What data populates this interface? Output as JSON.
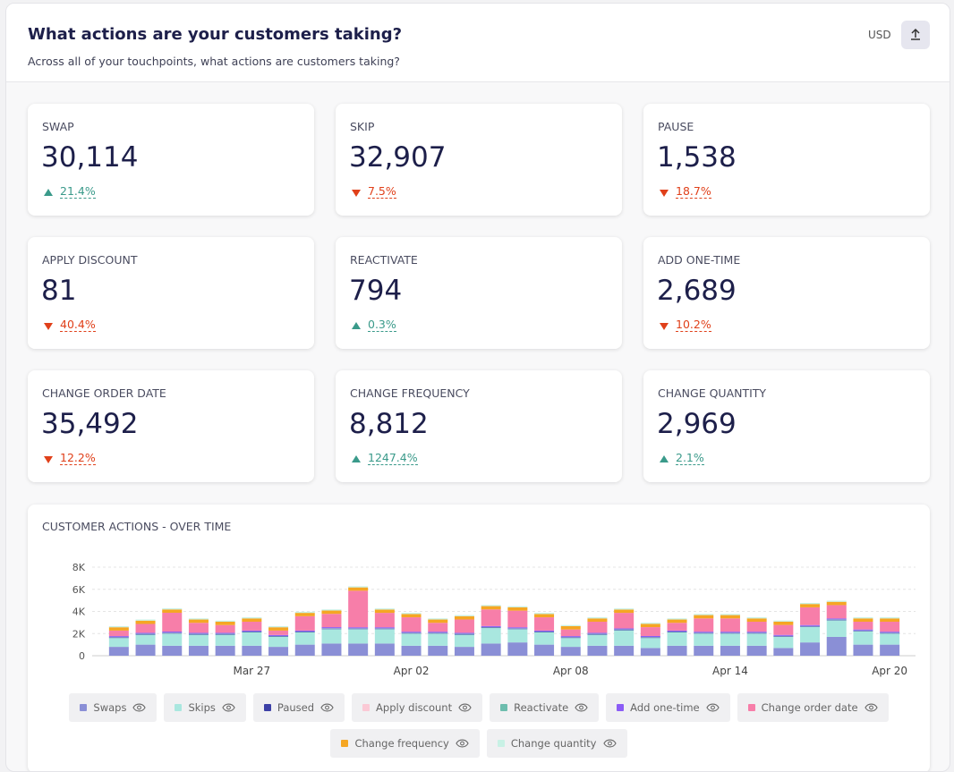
{
  "header": {
    "title": "What actions are your customers taking?",
    "subtitle": "Across all of your touchpoints, what actions are customers taking?",
    "currency": "USD"
  },
  "kpis": [
    {
      "label": "SWAP",
      "value": "30,114",
      "change": "21.4%",
      "direction": "up"
    },
    {
      "label": "SKIP",
      "value": "32,907",
      "change": "7.5%",
      "direction": "down"
    },
    {
      "label": "PAUSE",
      "value": "1,538",
      "change": "18.7%",
      "direction": "down"
    },
    {
      "label": "APPLY DISCOUNT",
      "value": "81",
      "change": "40.4%",
      "direction": "down"
    },
    {
      "label": "REACTIVATE",
      "value": "794",
      "change": "0.3%",
      "direction": "up"
    },
    {
      "label": "ADD ONE-TIME",
      "value": "2,689",
      "change": "10.2%",
      "direction": "down"
    },
    {
      "label": "CHANGE ORDER DATE",
      "value": "35,492",
      "change": "12.2%",
      "direction": "down"
    },
    {
      "label": "CHANGE FREQUENCY",
      "value": "8,812",
      "change": "1247.4%",
      "direction": "up"
    },
    {
      "label": "CHANGE QUANTITY",
      "value": "2,969",
      "change": "2.1%",
      "direction": "up"
    }
  ],
  "chart_data": {
    "type": "bar",
    "stacked": true,
    "title": "CUSTOMER ACTIONS - OVER TIME",
    "categories": [
      null,
      null,
      null,
      null,
      null,
      "Mar 27",
      null,
      null,
      null,
      null,
      null,
      "Apr 02",
      null,
      null,
      null,
      null,
      null,
      "Apr 08",
      null,
      null,
      null,
      null,
      null,
      "Apr 14",
      null,
      null,
      null,
      null,
      null,
      "Apr 20"
    ],
    "series": [
      {
        "name": "Swaps",
        "color": "#8a8fd6",
        "values": [
          800,
          1000,
          900,
          900,
          900,
          900,
          800,
          1000,
          1100,
          1100,
          1100,
          900,
          900,
          800,
          1100,
          1200,
          1000,
          800,
          900,
          900,
          700,
          900,
          900,
          900,
          900,
          700,
          1200,
          1700,
          1000,
          1000
        ]
      },
      {
        "name": "Skips",
        "color": "#a9e7df",
        "values": [
          800,
          900,
          1100,
          1000,
          1000,
          1200,
          900,
          1100,
          1300,
          1300,
          1300,
          1100,
          1100,
          1100,
          1400,
          1200,
          1100,
          800,
          1000,
          1400,
          900,
          1200,
          1100,
          1100,
          1100,
          1000,
          1400,
          1500,
          1200,
          1000
        ]
      },
      {
        "name": "Paused",
        "color": "#3c40a6",
        "values": [
          50,
          50,
          50,
          50,
          50,
          50,
          50,
          50,
          50,
          50,
          50,
          50,
          50,
          50,
          50,
          50,
          50,
          50,
          50,
          50,
          50,
          50,
          50,
          50,
          50,
          50,
          50,
          50,
          50,
          50
        ]
      },
      {
        "name": "Apply discount",
        "color": "#fbc9d5",
        "values": [
          0,
          0,
          10,
          0,
          0,
          0,
          0,
          0,
          10,
          0,
          0,
          0,
          0,
          0,
          10,
          0,
          0,
          0,
          0,
          0,
          10,
          0,
          0,
          0,
          0,
          10,
          0,
          0,
          0,
          0
        ]
      },
      {
        "name": "Reactivate",
        "color": "#6dbdae",
        "values": [
          30,
          30,
          30,
          30,
          30,
          30,
          30,
          30,
          30,
          30,
          30,
          30,
          30,
          30,
          30,
          30,
          30,
          30,
          30,
          30,
          30,
          30,
          30,
          30,
          30,
          30,
          30,
          30,
          30,
          30
        ]
      },
      {
        "name": "Add one-time",
        "color": "#8b5cf6",
        "values": [
          90,
          90,
          90,
          90,
          90,
          90,
          90,
          90,
          90,
          90,
          90,
          90,
          90,
          90,
          90,
          90,
          90,
          90,
          90,
          90,
          90,
          90,
          90,
          90,
          90,
          90,
          90,
          90,
          90,
          90
        ]
      },
      {
        "name": "Change order date",
        "color": "#f77ea9",
        "values": [
          500,
          800,
          1700,
          900,
          700,
          800,
          400,
          1300,
          1200,
          3300,
          1300,
          1300,
          800,
          1200,
          1500,
          1500,
          1200,
          600,
          1000,
          1400,
          800,
          700,
          1200,
          1200,
          900,
          900,
          1600,
          1200,
          700,
          900
        ]
      },
      {
        "name": "Change frequency",
        "color": "#f5a623",
        "values": [
          300,
          300,
          300,
          300,
          300,
          300,
          300,
          300,
          300,
          300,
          300,
          300,
          300,
          300,
          300,
          300,
          300,
          300,
          300,
          300,
          300,
          300,
          300,
          300,
          300,
          300,
          300,
          300,
          300,
          300
        ]
      },
      {
        "name": "Change quantity",
        "color": "#c8f1e5",
        "values": [
          100,
          100,
          100,
          100,
          100,
          100,
          100,
          100,
          100,
          100,
          100,
          100,
          100,
          100,
          100,
          100,
          100,
          100,
          100,
          100,
          100,
          100,
          100,
          100,
          100,
          100,
          100,
          100,
          100,
          100
        ]
      }
    ],
    "ylim": [
      0,
      8000
    ],
    "yticks": [
      0,
      {
        "value": 2000,
        "label": "2K"
      },
      {
        "value": 4000,
        "label": "4K"
      },
      {
        "value": 6000,
        "label": "6K"
      },
      {
        "value": 8000,
        "label": "8K"
      }
    ],
    "grid": true
  }
}
